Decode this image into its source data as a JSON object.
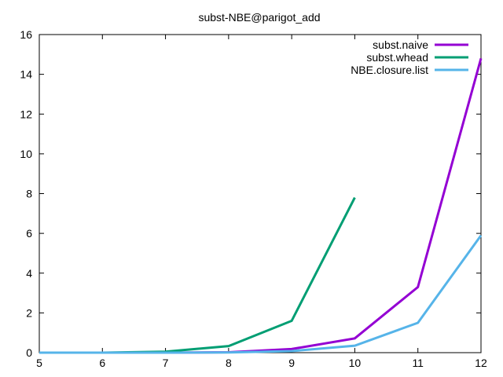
{
  "chart_data": {
    "type": "line",
    "title": "subst-NBE@parigot_add",
    "xlabel": "",
    "ylabel": "",
    "xlim": [
      5,
      12
    ],
    "ylim": [
      0,
      16
    ],
    "x_ticks": [
      "5",
      "6",
      "7",
      "8",
      "9",
      "10",
      "11",
      "12"
    ],
    "y_ticks": [
      "0",
      "2",
      "4",
      "6",
      "8",
      "10",
      "12",
      "14",
      "16"
    ],
    "grid": false,
    "legend_position": "top-right",
    "series": [
      {
        "name": "subst.naive",
        "color": "#9400D3",
        "x": [
          5,
          6,
          7,
          8,
          9,
          10,
          11,
          12
        ],
        "y": [
          0,
          0,
          0,
          0.02,
          0.18,
          0.72,
          3.3,
          14.8
        ]
      },
      {
        "name": "subst.whead",
        "color": "#009E73",
        "x": [
          5,
          6,
          7,
          8,
          9,
          10
        ],
        "y": [
          0,
          0,
          0.05,
          0.33,
          1.6,
          7.8
        ]
      },
      {
        "name": "NBE.closure.list",
        "color": "#56B4E9",
        "x": [
          5,
          6,
          7,
          8,
          9,
          10,
          11,
          12
        ],
        "y": [
          0,
          0,
          0,
          0.01,
          0.08,
          0.35,
          1.5,
          5.9
        ]
      }
    ]
  }
}
